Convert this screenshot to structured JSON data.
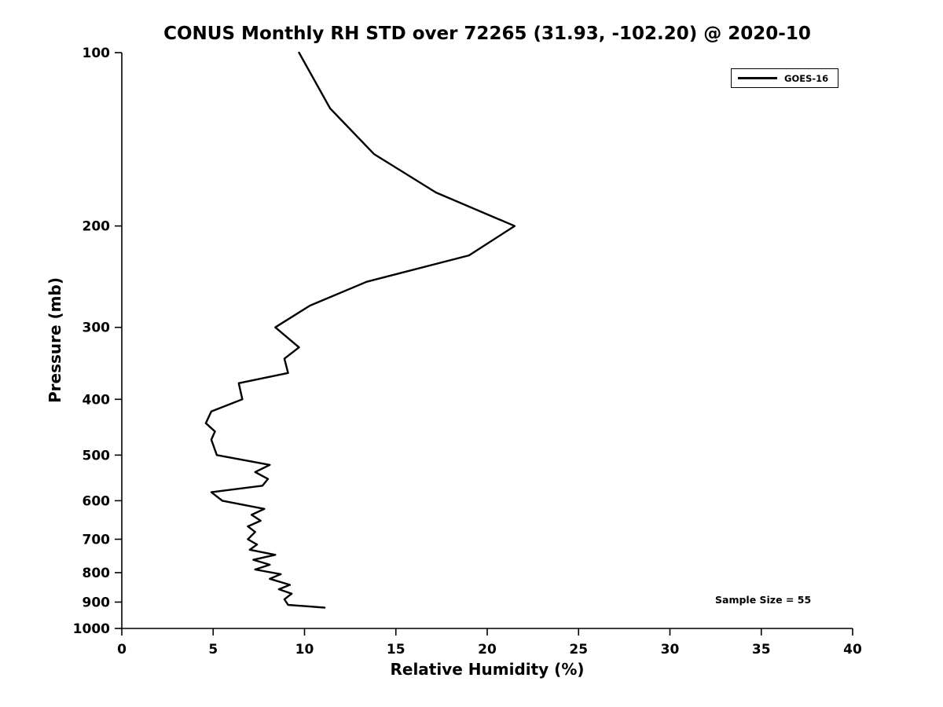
{
  "chart_data": {
    "type": "line",
    "title": "CONUS Monthly RH STD over 72265 (31.93, -102.20) @ 2020-10",
    "xlabel": "Relative Humidity (%)",
    "ylabel": "Pressure (mb)",
    "xlim": [
      0,
      40
    ],
    "ylim": [
      100,
      1000
    ],
    "y_scale": "log10",
    "y_axis_direction": "inverted",
    "x_ticks": [
      0,
      5,
      10,
      15,
      20,
      25,
      30,
      35,
      40
    ],
    "y_ticks": [
      100,
      200,
      300,
      400,
      500,
      600,
      700,
      800,
      900,
      1000
    ],
    "grid": false,
    "legend": {
      "position": "top-right",
      "entries": [
        "GOES-16"
      ]
    },
    "annotations": {
      "sample_size_label": "Sample Size = 55",
      "sample_size": 55
    },
    "series": [
      {
        "name": "GOES-16",
        "color": "#000000",
        "points_format": [
          "pressure_mb",
          "rh_std_percent"
        ],
        "points": [
          [
            100,
            9.7
          ],
          [
            125,
            11.4
          ],
          [
            150,
            13.8
          ],
          [
            175,
            17.2
          ],
          [
            200,
            21.5
          ],
          [
            225,
            19.0
          ],
          [
            250,
            13.4
          ],
          [
            275,
            10.3
          ],
          [
            300,
            8.4
          ],
          [
            325,
            9.7
          ],
          [
            340,
            8.9
          ],
          [
            360,
            9.1
          ],
          [
            375,
            6.4
          ],
          [
            400,
            6.6
          ],
          [
            420,
            4.9
          ],
          [
            440,
            4.6
          ],
          [
            455,
            5.1
          ],
          [
            470,
            4.9
          ],
          [
            500,
            5.2
          ],
          [
            520,
            8.1
          ],
          [
            535,
            7.3
          ],
          [
            550,
            8.0
          ],
          [
            565,
            7.7
          ],
          [
            580,
            4.9
          ],
          [
            600,
            5.5
          ],
          [
            620,
            7.8
          ],
          [
            635,
            7.1
          ],
          [
            650,
            7.6
          ],
          [
            665,
            6.9
          ],
          [
            680,
            7.3
          ],
          [
            700,
            6.9
          ],
          [
            715,
            7.4
          ],
          [
            730,
            7.0
          ],
          [
            745,
            8.4
          ],
          [
            760,
            7.2
          ],
          [
            775,
            8.1
          ],
          [
            790,
            7.3
          ],
          [
            805,
            8.7
          ],
          [
            820,
            8.1
          ],
          [
            840,
            9.2
          ],
          [
            855,
            8.6
          ],
          [
            870,
            9.3
          ],
          [
            890,
            8.9
          ],
          [
            910,
            9.1
          ],
          [
            920,
            11.1
          ]
        ]
      }
    ]
  }
}
